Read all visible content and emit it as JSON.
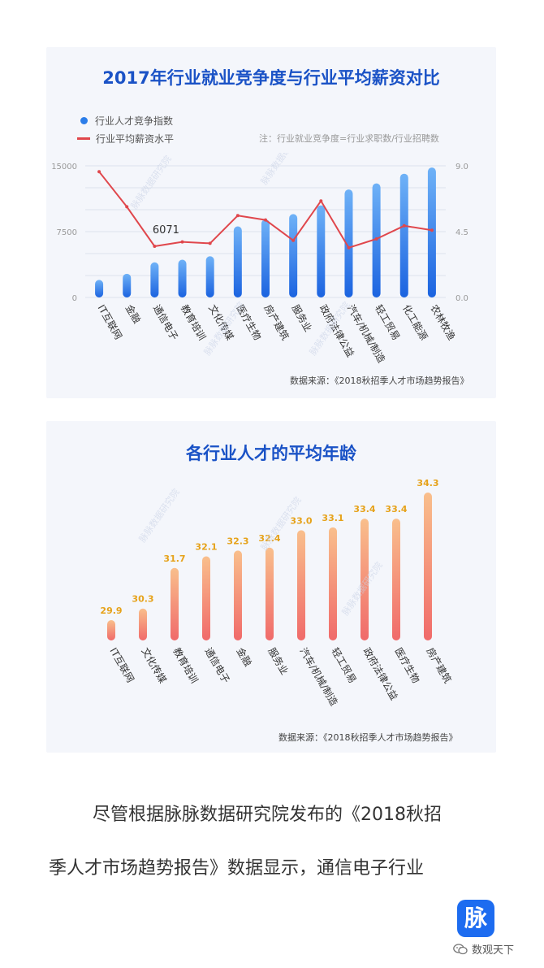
{
  "chart1": {
    "title": "2017年行业就业竞争度与行业平均薪资对比",
    "legend": [
      {
        "name": "行业人才竞争指数",
        "color": "#2b7de9"
      },
      {
        "name": "行业平均薪资水平",
        "color": "#e0474c"
      }
    ],
    "note": "注：行业就业竞争度=行业求职数/行业招聘数",
    "source": "数据来源：《2018秋招季人才市场趋势报告》",
    "watermark": "脉脉数据研究院",
    "chart_data": {
      "type": "bar",
      "categories": [
        "IT互联网",
        "金融",
        "通信电子",
        "教育培训",
        "文化传媒",
        "医疗生物",
        "房产建筑",
        "服务业",
        "政府法律公益",
        "汽车/机械/制造",
        "轻工贸易",
        "化工能源",
        "农林牧渔"
      ],
      "series": [
        {
          "name": "行业人才竞争指数",
          "type": "bar",
          "axis": "left",
          "values": [
            2000,
            2700,
            4000,
            4300,
            4700,
            8100,
            8900,
            9500,
            10500,
            12300,
            13000,
            14100,
            14800
          ]
        },
        {
          "name": "行业平均薪资水平",
          "type": "line",
          "axis": "right",
          "values": [
            8.6,
            6.2,
            3.5,
            3.8,
            3.7,
            5.6,
            5.3,
            3.9,
            6.6,
            3.4,
            4.0,
            4.9,
            4.6
          ]
        }
      ],
      "annotations": [
        {
          "category": "通信电子",
          "text": "6071"
        }
      ],
      "yticks_left": [
        "0",
        "7500",
        "15000"
      ],
      "yticks_right": [
        "0.0",
        "4.5",
        "9.0"
      ],
      "ylim_left": [
        0,
        15000
      ],
      "ylim_right": [
        0,
        9
      ],
      "grid": true
    }
  },
  "chart2": {
    "title": "各行业人才的平均年龄",
    "source": "数据来源：《2018秋招季人才市场趋势报告》",
    "watermark": "脉脉数据研究院",
    "chart_data": {
      "type": "bar",
      "categories": [
        "IT互联网",
        "文化传媒",
        "教育培训",
        "通信电子",
        "金融",
        "服务业",
        "汽车/机械/制造",
        "轻工贸易",
        "政府法律公益",
        "医疗生物",
        "房产建筑"
      ],
      "values": [
        29.9,
        30.3,
        31.7,
        32.1,
        32.3,
        32.4,
        33.0,
        33.1,
        33.4,
        33.4,
        34.3
      ],
      "labels": [
        "29.9",
        "30.3",
        "31.7",
        "32.1",
        "32.3",
        "32.4",
        "33.0",
        "33.1",
        "33.4",
        "33.4",
        "34.3"
      ],
      "ylim": [
        29.2,
        34.3
      ],
      "grid": false
    }
  },
  "body_text": {
    "line1": "尽管根据脉脉数据研究院发布的《2018秋招",
    "line2": "季人才市场趋势报告》数据显示，通信电子行业"
  },
  "logo": {
    "text": "脉"
  },
  "wechat": {
    "name": "数观天下",
    "icon": "wechat-icon"
  }
}
